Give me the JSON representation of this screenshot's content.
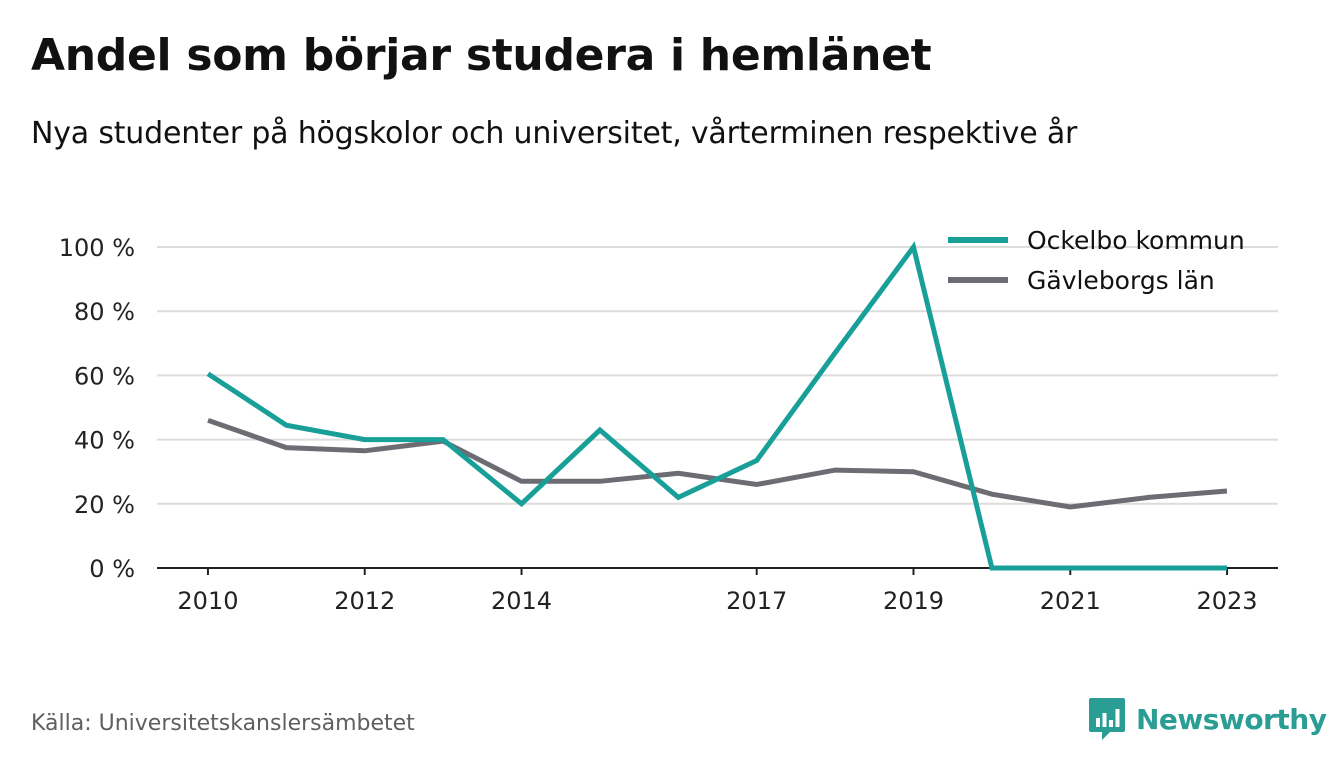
{
  "title": "Andel som börjar studera i hemlänet",
  "subtitle": "Nya studenter på högskolor och universitet, vårterminen respektive år",
  "source": "Källa: Universitetskanslersämbetet",
  "brand": {
    "name": "Newsworthy",
    "icon": "newsworthy-logo-icon",
    "color": "#2a9d95"
  },
  "chart_data": {
    "type": "line",
    "x": [
      2010,
      2011,
      2012,
      2013,
      2014,
      2015,
      2016,
      2017,
      2018,
      2019,
      2020,
      2021,
      2022,
      2023
    ],
    "x_ticks": [
      2010,
      2012,
      2014,
      2017,
      2019,
      2021,
      2023
    ],
    "x_tick_labels": [
      "2010",
      "2012",
      "2014",
      "2017",
      "2019",
      "2021",
      "2023"
    ],
    "y_ticks": [
      0,
      20,
      40,
      60,
      80,
      100
    ],
    "y_tick_labels": [
      "0 %",
      "20 %",
      "40 %",
      "60 %",
      "80 %",
      "100 %"
    ],
    "ylim": [
      0,
      100
    ],
    "xlim": [
      2009.35,
      2023.65
    ],
    "grid": true,
    "legend_position": "top-right",
    "series": [
      {
        "name": "Ockelbo kommun",
        "color": "#18a098",
        "values": [
          60.5,
          44.5,
          40,
          40,
          20,
          43,
          22,
          33.5,
          67,
          100,
          0,
          0,
          0,
          0
        ]
      },
      {
        "name": "Gävleborgs län",
        "color": "#6d6c73",
        "values": [
          46,
          37.5,
          36.5,
          39.5,
          27,
          27,
          29.5,
          26,
          30.5,
          30,
          23,
          19,
          22,
          24
        ]
      }
    ]
  }
}
